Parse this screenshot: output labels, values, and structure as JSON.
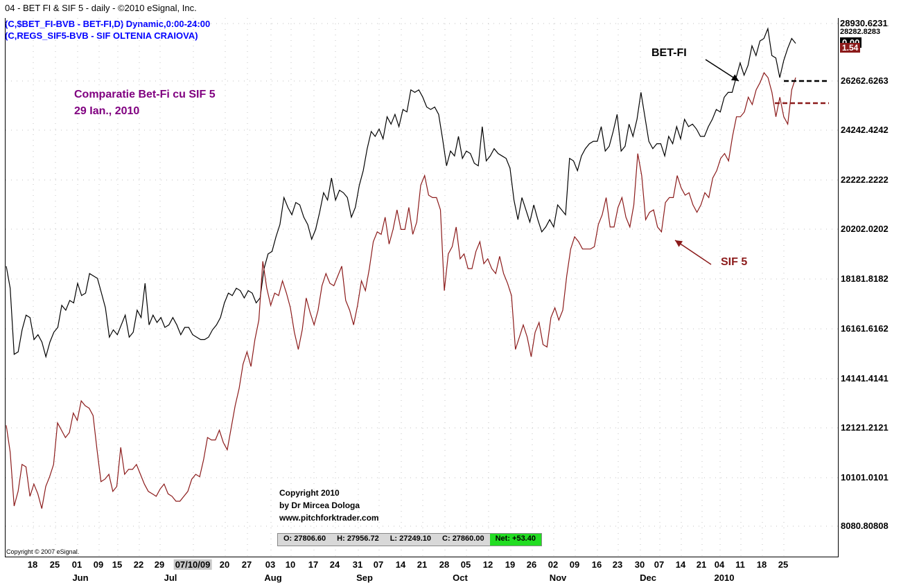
{
  "header": {
    "title": "04 - BET FI & SIF 5  -  daily - ©2010 eSignal, Inc.",
    "series1": "(C,$BET_FI-BVB - BET-FI,D) Dynamic,0:00-24:00",
    "series2": "(C,REGS_SIF5-BVB - SIF OLTENIA CRAIOVA)"
  },
  "annotations": {
    "title_line1": "Comparatie Bet-Fi cu SIF 5",
    "title_line2": "29 Ian., 2010",
    "betfi_label": "BET-FI",
    "sif5_label": "SIF 5",
    "copyright_line1": "Copyright 2010",
    "copyright_line2": "by Dr Mircea Dologa",
    "copyright_line3": "www.pitchforktrader.com",
    "esignal_copyright": "Copyright © 2007 eSignal."
  },
  "ohlc": {
    "open": "O: 27806.60",
    "high": "H: 27956.72",
    "low": "L: 27249.10",
    "close": "C: 27860.00",
    "net": "Net: +53.40"
  },
  "price_tags": {
    "top": "28930.6231",
    "top2": "28282.8283",
    "black": "0.00",
    "red": "1.54"
  },
  "colors": {
    "betfi": "#000000",
    "sif5": "#8b1a1a",
    "grid_dot": "#c0c0c0",
    "net_bg": "#22dd22",
    "header_blue": "#0000ff",
    "annot_purple": "#800080"
  },
  "chart_data": {
    "type": "line",
    "title": "04 - BET FI & SIF 5  -  daily - ©2010 eSignal, Inc.",
    "y_ticks": [
      "28930.6231",
      "26262.6263",
      "24242.4242",
      "22222.2222",
      "20202.0202",
      "18181.8182",
      "16161.6162",
      "14141.4141",
      "12121.2121",
      "10101.0101",
      "8080.80808"
    ],
    "ylim": [
      7000,
      28930
    ],
    "x_ticks": [
      "18",
      "25",
      "01",
      "09",
      "15",
      "22",
      "29",
      "07/10/09",
      "20",
      "27",
      "03",
      "10",
      "17",
      "24",
      "31",
      "07",
      "14",
      "21",
      "28",
      "05",
      "12",
      "19",
      "26",
      "02",
      "09",
      "16",
      "23",
      "30",
      "07",
      "14",
      "21",
      "04",
      "11",
      "18",
      "25"
    ],
    "months": [
      "Jun",
      "Jul",
      "Aug",
      "Sep",
      "Oct",
      "Nov",
      "Dec",
      "2010"
    ],
    "grid": "dotted",
    "series": [
      {
        "name": "BET-FI",
        "values": [
          18700,
          17800,
          15100,
          15200,
          16100,
          16700,
          16600,
          15700,
          15900,
          15600,
          15000,
          15600,
          16000,
          16200,
          17100,
          16900,
          17300,
          17200,
          18000,
          17500,
          17600,
          18400,
          18300,
          18200,
          17600,
          17000,
          15800,
          16100,
          15900,
          16300,
          16700,
          15800,
          16000,
          16900,
          16600,
          18000,
          16300,
          16700,
          16400,
          16600,
          16200,
          16300,
          16600,
          16300,
          15900,
          16200,
          16200,
          15900,
          15800,
          15700,
          15700,
          15800,
          16100,
          16300,
          16600,
          17200,
          17600,
          17500,
          17800,
          17700,
          17400,
          17700,
          17600,
          17200,
          17400,
          18600,
          19200,
          19300,
          19900,
          20400,
          21500,
          21100,
          20800,
          21300,
          21200,
          20700,
          20400,
          19800,
          20200,
          20900,
          21700,
          21400,
          22300,
          21400,
          21800,
          21700,
          21500,
          20700,
          21100,
          22000,
          22600,
          23500,
          24200,
          24000,
          24300,
          23900,
          24800,
          24500,
          24900,
          24400,
          25100,
          25000,
          25900,
          25800,
          25900,
          25600,
          25200,
          25100,
          25200,
          24900,
          23900,
          22800,
          23400,
          23200,
          24000,
          23100,
          23400,
          23300,
          22900,
          22800,
          24400,
          23000,
          23200,
          23500,
          23300,
          23200,
          23100,
          22700,
          21400,
          20600,
          21500,
          21000,
          20500,
          21200,
          20600,
          20100,
          20300,
          20600,
          20300,
          21200,
          21000,
          20800,
          23100,
          23000,
          22600,
          23200,
          23500,
          23700,
          23800,
          23800,
          24400,
          23400,
          23600,
          24200,
          24900,
          23400,
          23600,
          24500,
          24000,
          24700,
          25800,
          24800,
          23800,
          23500,
          23700,
          23700,
          23200,
          24000,
          23700,
          24400,
          23900,
          24700,
          24400,
          24500,
          24300,
          24000,
          24000,
          24400,
          24700,
          25100,
          25000,
          25600,
          25800,
          25800,
          26400,
          27000,
          26500,
          26900,
          27700,
          27300,
          27900,
          28000,
          28400,
          27300,
          27200,
          26400,
          27100,
          27600,
          28000,
          27800
        ]
      },
      {
        "name": "SIF 5",
        "values": [
          12200,
          11100,
          8900,
          9500,
          10600,
          10500,
          9300,
          9800,
          9400,
          8800,
          9700,
          10100,
          10600,
          12300,
          12000,
          11700,
          11900,
          12700,
          12400,
          13200,
          13000,
          12900,
          12600,
          11200,
          9900,
          10000,
          10200,
          9500,
          9700,
          11300,
          10200,
          10400,
          10400,
          10600,
          10200,
          9800,
          9500,
          9400,
          9300,
          9600,
          9800,
          9400,
          9300,
          9100,
          9100,
          9300,
          9500,
          10000,
          10200,
          10100,
          10800,
          11700,
          11600,
          11600,
          12000,
          11500,
          11200,
          12100,
          13000,
          13700,
          14700,
          15200,
          14600,
          15700,
          16500,
          18900,
          17800,
          17100,
          17600,
          17500,
          18100,
          17600,
          17000,
          16000,
          15300,
          16100,
          17400,
          16800,
          16300,
          16900,
          17900,
          18400,
          18000,
          17900,
          18300,
          18700,
          17300,
          16900,
          16300,
          17100,
          18100,
          17700,
          18600,
          19700,
          20100,
          20000,
          20700,
          19600,
          20200,
          21000,
          20200,
          20200,
          21100,
          20000,
          20500,
          22000,
          22400,
          21600,
          21500,
          21500,
          21000,
          17700,
          19200,
          19500,
          20300,
          19000,
          19200,
          18600,
          18600,
          19300,
          19700,
          18800,
          19000,
          18600,
          18400,
          19100,
          18400,
          18000,
          17500,
          15300,
          15800,
          16300,
          15800,
          15000,
          16000,
          16400,
          15500,
          15400,
          16600,
          17000,
          16500,
          16900,
          18300,
          19400,
          19900,
          19700,
          19400,
          19400,
          19400,
          19500,
          20400,
          20800,
          21500,
          20300,
          20300,
          21100,
          21500,
          20700,
          20300,
          21200,
          23300,
          22400,
          20600,
          20900,
          21000,
          20300,
          20100,
          21300,
          21500,
          21500,
          22400,
          21900,
          21600,
          21700,
          21200,
          20900,
          21200,
          21700,
          21500,
          22300,
          22600,
          23100,
          23300,
          23000,
          24000,
          24800,
          24800,
          25000,
          25600,
          25300,
          25900,
          26200,
          26600,
          26400,
          25800,
          24800,
          25600,
          24800,
          24500,
          25900,
          26400
        ]
      }
    ]
  }
}
